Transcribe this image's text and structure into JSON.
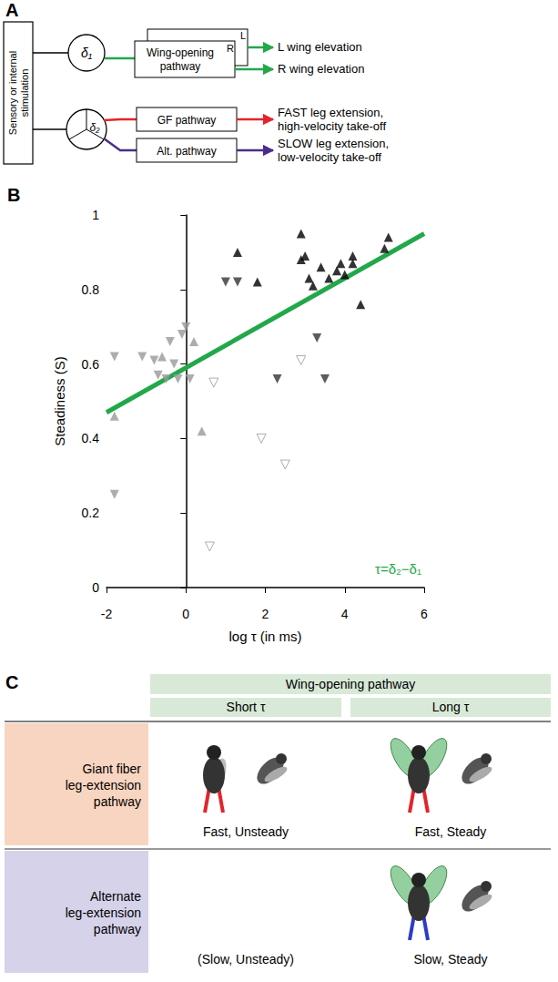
{
  "diagram": {
    "letter": "A",
    "input": "Sensory or internal stimulation",
    "delay_1": "δ₁",
    "delay_2": "δ₂",
    "wing_pathway": {
      "label": "Wing-opening pathway",
      "copies": [
        "L",
        "R"
      ],
      "outputs": [
        "L wing elevation",
        "R wing elevation"
      ],
      "color": "#22a84a"
    },
    "leg_pathways": [
      {
        "label": "GF pathway",
        "output": [
          "FAST leg extension,",
          "high-velocity take-off"
        ],
        "color": "#e3242b"
      },
      {
        "label": "Alt. pathway",
        "output": [
          "SLOW leg extension,",
          "low-velocity take-off"
        ],
        "color": "#4b2c8c"
      }
    ]
  },
  "chart_data": {
    "letter": "B",
    "type": "scatter",
    "xlabel": "log τ (in ms)",
    "ylabel": "Steadiness (S)",
    "xlim": [
      -2,
      6
    ],
    "xticks": [
      -2,
      0,
      2,
      4,
      6
    ],
    "ylim": [
      0,
      1
    ],
    "yticks": [
      0,
      0.2,
      0.4,
      0.6,
      0.8,
      1
    ],
    "grid": false,
    "annotation": {
      "text": "τ=δ₂−δ₁",
      "color": "#22a84a"
    },
    "series": [
      {
        "type": "line",
        "color": "#22a84a",
        "line_style": "solid",
        "x": [
          -2,
          6
        ],
        "values": [
          0.47,
          0.95
        ]
      },
      {
        "type": "scatter",
        "color": "#000000",
        "marker": "triangle-up",
        "x": [
          1.3,
          1.8,
          2.9,
          2.9,
          3.0,
          3.2,
          3.1,
          3.4,
          3.6,
          3.8,
          3.9,
          4.0,
          4.2,
          4.2,
          4.4,
          5.0,
          5.1
        ],
        "values": [
          0.9,
          0.82,
          0.95,
          0.88,
          0.89,
          0.81,
          0.83,
          0.86,
          0.83,
          0.85,
          0.87,
          0.84,
          0.89,
          0.87,
          0.76,
          0.91,
          0.94
        ]
      },
      {
        "type": "scatter",
        "color": "#999999",
        "marker": "triangle-down",
        "x": [
          -1.8,
          -1.8,
          -1.1,
          -0.8,
          -0.7,
          -0.4,
          -0.3,
          -0.1,
          0.0,
          -0.5,
          -0.2,
          0.1
        ],
        "values": [
          0.62,
          0.25,
          0.62,
          0.61,
          0.57,
          0.66,
          0.6,
          0.68,
          0.7,
          0.56,
          0.56,
          0.56
        ]
      },
      {
        "type": "scatter",
        "color": "#999999",
        "marker": "triangle-up",
        "x": [
          -1.8,
          -0.6,
          0.2,
          0.4
        ],
        "values": [
          0.46,
          0.62,
          0.66,
          0.42
        ]
      },
      {
        "type": "scatter",
        "color": "#333333",
        "marker": "triangle-down",
        "x": [
          1.0,
          1.3,
          2.3,
          3.3,
          3.5
        ],
        "values": [
          0.82,
          0.82,
          0.56,
          0.67,
          0.56
        ]
      },
      {
        "type": "scatter",
        "color": "#999999",
        "marker": "triangle-down-open",
        "x": [
          0.6,
          0.7,
          1.9,
          2.5,
          2.9
        ],
        "values": [
          0.11,
          0.55,
          0.4,
          0.33,
          0.61
        ]
      }
    ]
  },
  "table": {
    "letter": "C",
    "column_group": "Wing-opening pathway",
    "columns": [
      "Short τ",
      "Long τ"
    ],
    "rows": [
      {
        "head": "Giant fiber leg-extension pathway",
        "color": "#f8d5c0",
        "cells": [
          "Fast, Unsteady",
          "Fast, Steady"
        ]
      },
      {
        "head": "Alternate leg-extension pathway",
        "color": "#d5d2ea",
        "cells": [
          "(Slow, Unsteady)",
          "Slow, Steady"
        ]
      }
    ]
  }
}
